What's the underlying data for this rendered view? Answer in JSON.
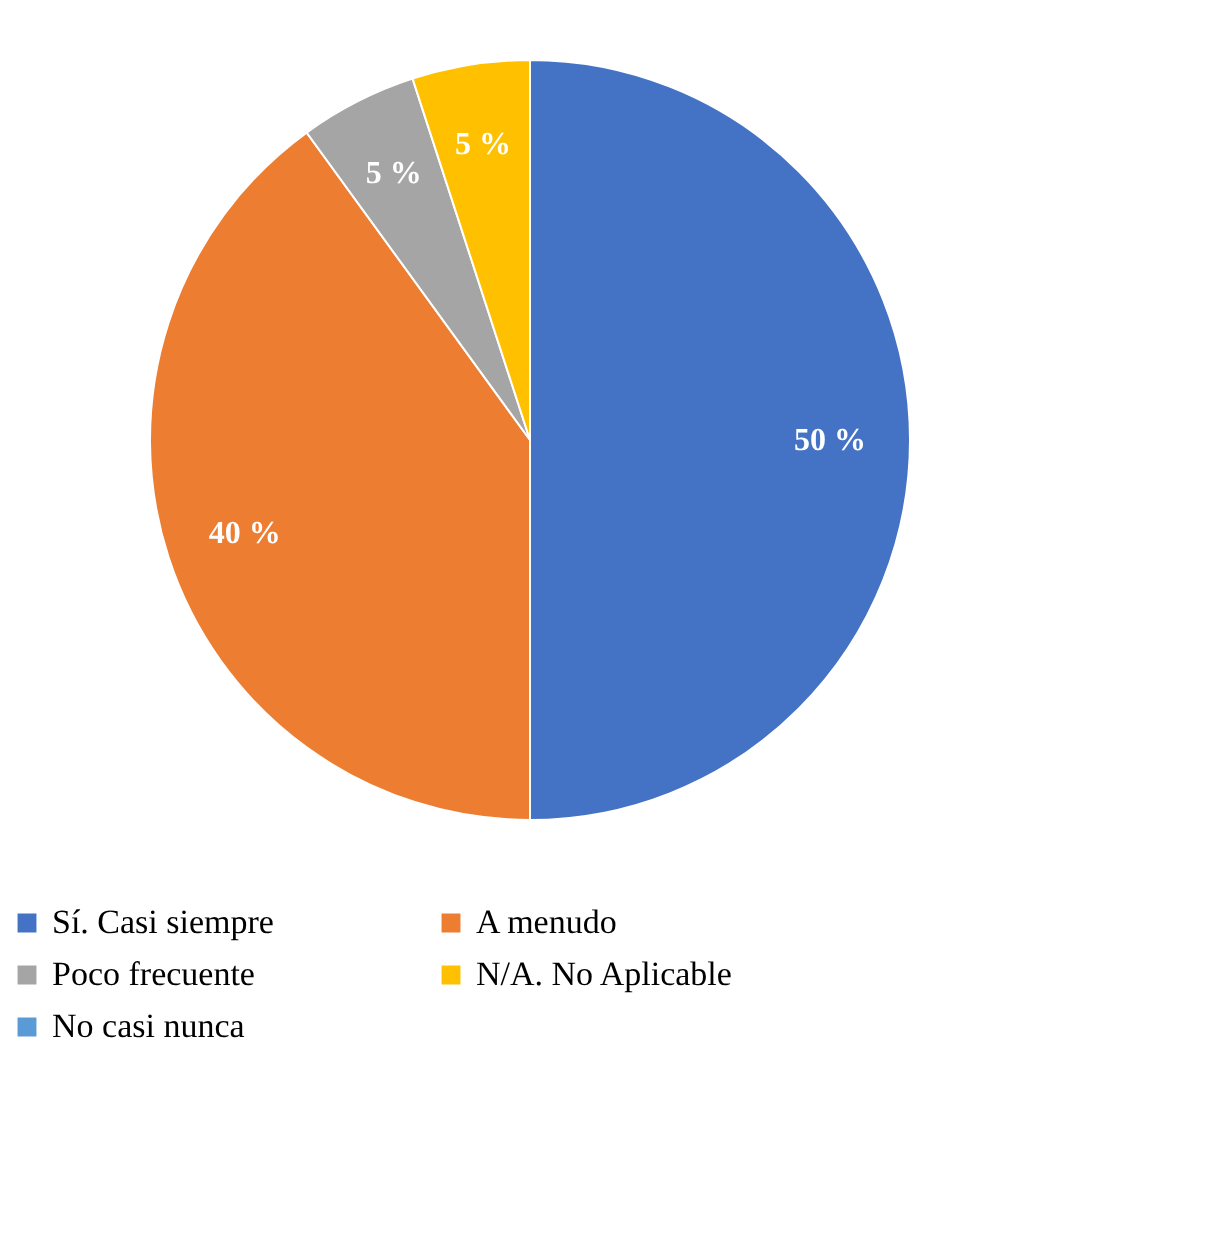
{
  "chart_data": {
    "type": "pie",
    "categories": [
      "Sí. Casi siempre",
      "A menudo",
      "Poco frecuente",
      "N/A. No Aplicable",
      "No casi nunca"
    ],
    "values": [
      50,
      40,
      5,
      5,
      0
    ],
    "colors": [
      "#4472c4",
      "#ed7d31",
      "#a5a5a5",
      "#ffc000",
      "#5b9bd5"
    ],
    "value_labels": [
      "50 %",
      "40 %",
      "5 %",
      "5 %",
      null
    ],
    "legend": "bottom"
  }
}
